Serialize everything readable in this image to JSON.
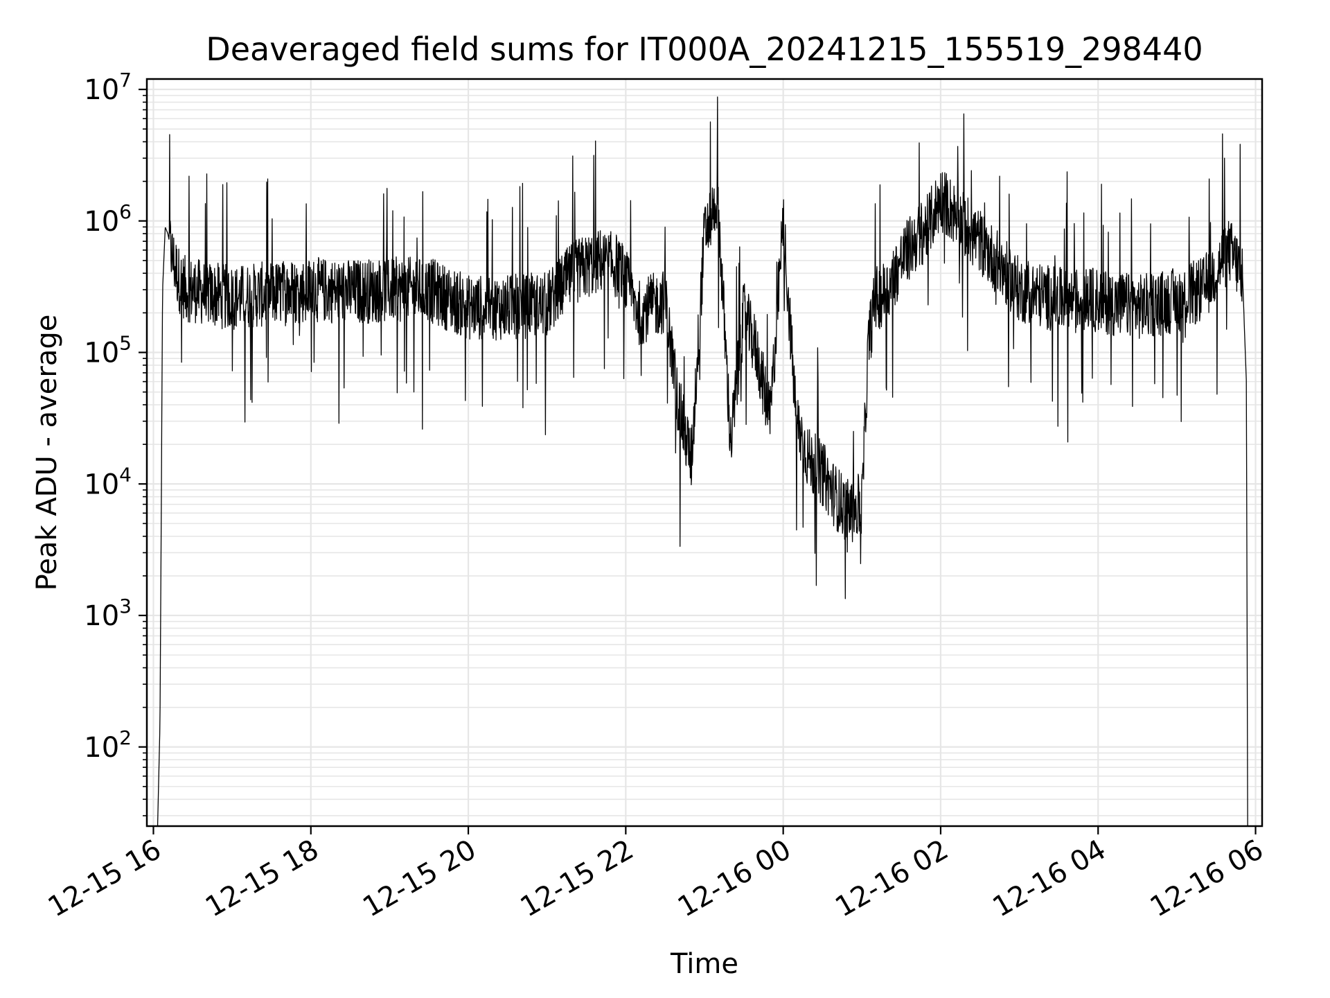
{
  "chart_data": {
    "type": "line",
    "title": "Deaveraged field sums for IT000A_20241215_155519_298440",
    "xlabel": "Time",
    "ylabel": "Peak ADU - average",
    "yscale": "log",
    "ylim": [
      25,
      12000000
    ],
    "xlim": [
      "2024-12-15 15:55",
      "2024-12-16 06:05"
    ],
    "grid": true,
    "grid_minor": true,
    "line_color": "#000000",
    "grid_color": "#e6e6e6",
    "x_ticks": [
      {
        "t": "2024-12-15 16:00",
        "label": "12-15 16"
      },
      {
        "t": "2024-12-15 18:00",
        "label": "12-15 18"
      },
      {
        "t": "2024-12-15 20:00",
        "label": "12-15 20"
      },
      {
        "t": "2024-12-15 22:00",
        "label": "12-15 22"
      },
      {
        "t": "2024-12-16 00:00",
        "label": "12-16 00"
      },
      {
        "t": "2024-12-16 02:00",
        "label": "12-16 02"
      },
      {
        "t": "2024-12-16 04:00",
        "label": "12-16 04"
      },
      {
        "t": "2024-12-16 06:00",
        "label": "12-16 06"
      }
    ],
    "y_ticks": [
      {
        "value": 100,
        "base": "10",
        "exp": "2"
      },
      {
        "value": 1000,
        "base": "10",
        "exp": "3"
      },
      {
        "value": 10000,
        "base": "10",
        "exp": "4"
      },
      {
        "value": 100000,
        "base": "10",
        "exp": "5"
      },
      {
        "value": 1000000,
        "base": "10",
        "exp": "6"
      },
      {
        "value": 10000000,
        "base": "10",
        "exp": "7"
      }
    ],
    "series": [
      {
        "x": [
          "2024-12-15 16:03",
          "2024-12-15 16:05",
          "2024-12-15 16:07",
          "2024-12-15 16:09",
          "2024-12-15 16:11",
          "2024-12-15 16:15",
          "2024-12-15 16:20",
          "2024-12-15 16:25",
          "2024-12-15 16:30",
          "2024-12-15 16:40",
          "2024-12-15 16:50",
          "2024-12-15 17:00",
          "2024-12-15 17:30",
          "2024-12-15 18:00",
          "2024-12-15 18:30",
          "2024-12-15 19:00",
          "2024-12-15 19:30",
          "2024-12-15 20:00",
          "2024-12-15 20:30",
          "2024-12-15 21:00",
          "2024-12-15 21:20",
          "2024-12-15 21:40",
          "2024-12-15 21:55",
          "2024-12-15 22:10",
          "2024-12-15 22:30",
          "2024-12-15 22:40",
          "2024-12-15 22:50",
          "2024-12-15 23:00",
          "2024-12-15 23:10",
          "2024-12-15 23:20",
          "2024-12-15 23:30",
          "2024-12-15 23:40",
          "2024-12-15 23:50",
          "2024-12-16 00:00",
          "2024-12-16 00:10",
          "2024-12-16 00:20",
          "2024-12-16 00:30",
          "2024-12-16 00:40",
          "2024-12-16 00:50",
          "2024-12-16 01:00",
          "2024-12-16 01:05",
          "2024-12-16 01:10",
          "2024-12-16 01:20",
          "2024-12-16 01:30",
          "2024-12-16 01:40",
          "2024-12-16 01:50",
          "2024-12-16 02:00",
          "2024-12-16 02:30",
          "2024-12-16 03:00",
          "2024-12-16 03:30",
          "2024-12-16 04:00",
          "2024-12-16 04:30",
          "2024-12-16 05:00",
          "2024-12-16 05:20",
          "2024-12-16 05:40",
          "2024-12-16 05:50",
          "2024-12-16 05:53",
          "2024-12-16 05:54"
        ],
        "y": [
          20,
          150,
          300000,
          900000,
          800000,
          500000,
          350000,
          300000,
          300000,
          280000,
          270000,
          260000,
          280000,
          300000,
          290000,
          300000,
          300000,
          220000,
          220000,
          230000,
          400000,
          500000,
          450000,
          200000,
          250000,
          40000,
          15000,
          800000,
          1500000,
          20000,
          200000,
          100000,
          30000,
          1000000,
          30000,
          15000,
          12000,
          8000,
          6000,
          7000,
          120000,
          250000,
          300000,
          500000,
          700000,
          900000,
          1500000,
          700000,
          300000,
          250000,
          250000,
          220000,
          250000,
          300000,
          600000,
          400000,
          60000,
          20
        ]
      }
    ]
  }
}
